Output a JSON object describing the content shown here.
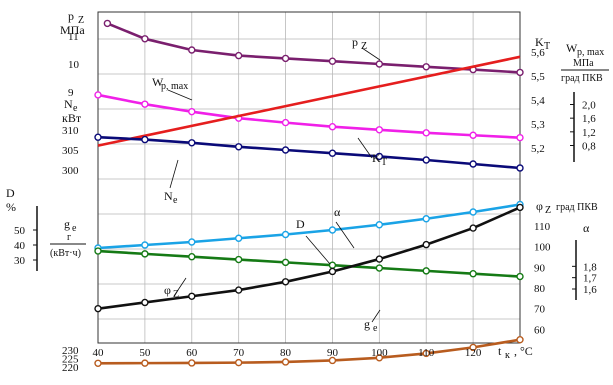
{
  "chart_data": {
    "type": "line",
    "x": [
      40,
      50,
      60,
      70,
      80,
      90,
      100,
      110,
      120,
      130
    ],
    "x_ticks": [
      "40",
      "50",
      "60",
      "70",
      "80",
      "90",
      "100",
      "110",
      "120"
    ],
    "xlabel": "t",
    "xlabel_sub": "к",
    "xlabel_unit": ", °C",
    "xlim": [
      40,
      130
    ],
    "grid": true,
    "axes": {
      "pz": {
        "label": "p",
        "sub": "Z",
        "unit": "МПа",
        "range": [
          9,
          11.5
        ],
        "ticks": [
          "11",
          "10",
          "9"
        ]
      },
      "ne": {
        "label": "N",
        "sub": "e",
        "unit": "кВт",
        "range": [
          297,
          315
        ],
        "ticks": [
          "310",
          "305",
          "300"
        ]
      },
      "kt": {
        "label": "K",
        "sub": "T",
        "range": [
          5.15,
          5.65
        ],
        "ticks": [
          "5,6",
          "5,5",
          "5,4",
          "5,3",
          "5,2"
        ]
      },
      "wp": {
        "label": "W",
        "sub": "p, max",
        "unit_num": "МПа",
        "unit_den": "град ПКВ",
        "range": [
          0.2,
          2.6
        ],
        "ticks": [
          "2,0",
          "1,6",
          "1,2",
          "0,8"
        ]
      },
      "d": {
        "label": "D",
        "unit": "%",
        "range": [
          10,
          70
        ],
        "ticks": [
          "50",
          "40",
          "30"
        ]
      },
      "ge": {
        "label": "g",
        "sub": "e",
        "unit_num": "г",
        "unit_den": "(кВт·ч)",
        "range": [
          217,
          263
        ],
        "ticks": [
          "230",
          "225",
          "220"
        ]
      },
      "phi": {
        "label": "φ",
        "sub": "Z",
        "unit": "град ПКВ",
        "range": [
          50,
          125
        ],
        "ticks": [
          "110",
          "100",
          "90",
          "80",
          "70",
          "60"
        ]
      },
      "alpha": {
        "label": "α",
        "range": [
          1.45,
          2.05
        ],
        "ticks": [
          "1,8",
          "1,7",
          "1,6"
        ]
      }
    },
    "series": [
      {
        "axis": "pz",
        "label_text": "p",
        "label_sub": "Z",
        "color": "#7a1f6e",
        "markers": true,
        "x": [
          42,
          50,
          60,
          70,
          80,
          90,
          100,
          110,
          120,
          130
        ],
        "values": [
          11.45,
          10.9,
          10.5,
          10.3,
          10.2,
          10.1,
          10.0,
          9.9,
          9.8,
          9.7
        ]
      },
      {
        "axis": "wp",
        "label_text": "W",
        "label_sub": "p, max",
        "color": "#f020e8",
        "markers": true,
        "x": [
          40,
          50,
          60,
          70,
          80,
          90,
          100,
          110,
          120,
          130
        ],
        "values": [
          2.28,
          2.01,
          1.79,
          1.6,
          1.47,
          1.35,
          1.26,
          1.17,
          1.1,
          1.03
        ]
      },
      {
        "axis": "kt",
        "label_text": "K",
        "label_sub": "T",
        "color": "#e51e1e",
        "markers": false,
        "x": [
          40,
          130
        ],
        "values": [
          5.21,
          5.58
        ]
      },
      {
        "axis": "ne",
        "label_text": "N",
        "label_sub": "e",
        "color": "#0a0a78",
        "markers": true,
        "x": [
          40,
          50,
          60,
          70,
          80,
          90,
          100,
          110,
          120,
          130
        ],
        "values": [
          308.2,
          307.6,
          306.8,
          305.8,
          305.0,
          304.2,
          303.4,
          302.5,
          301.5,
          300.5
        ]
      },
      {
        "axis": "d",
        "label_text": "D",
        "color": "#1aa3e6",
        "markers": true,
        "x": [
          40,
          50,
          60,
          70,
          80,
          90,
          100,
          110,
          120,
          130
        ],
        "values": [
          38.0,
          40.0,
          42.0,
          44.5,
          47.0,
          50.0,
          53.5,
          57.5,
          62.0,
          67.0
        ]
      },
      {
        "axis": "alpha",
        "label_text": "α",
        "color": "#157a15",
        "markers": true,
        "x": [
          40,
          50,
          60,
          70,
          80,
          90,
          100,
          110,
          120,
          130
        ],
        "values": [
          1.935,
          1.91,
          1.885,
          1.86,
          1.835,
          1.81,
          1.785,
          1.76,
          1.735,
          1.71
        ]
      },
      {
        "axis": "phi",
        "label_text": "φ",
        "label_sub": "Z",
        "color": "#111111",
        "markers": true,
        "x": [
          40,
          50,
          60,
          70,
          80,
          90,
          100,
          110,
          120,
          130
        ],
        "values": [
          70,
          73,
          76,
          79,
          83,
          88,
          94,
          101,
          109,
          119
        ]
      },
      {
        "axis": "ge",
        "label_text": "g",
        "label_sub": "e",
        "color": "#b85c1f",
        "markers": true,
        "x": [
          40,
          50,
          60,
          70,
          80,
          90,
          100,
          110,
          120,
          130
        ],
        "values": [
          222.2,
          222.3,
          222.4,
          222.6,
          223.0,
          223.9,
          225.5,
          228.1,
          231.7,
          236.3
        ]
      }
    ]
  }
}
